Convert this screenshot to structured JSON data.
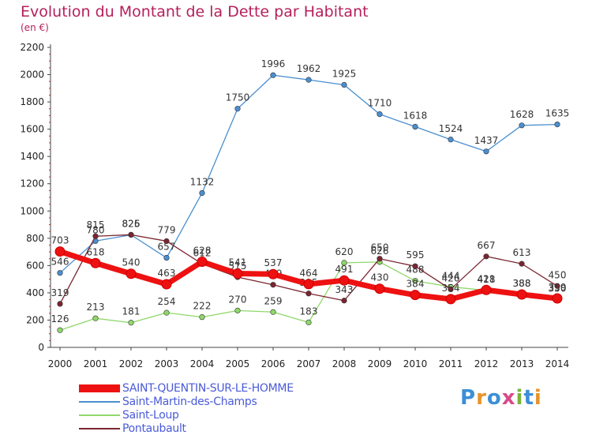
{
  "title": "Evolution du Montant de la Dette par Habitant",
  "unit_label": "(en €)",
  "logo": {
    "text": "Proxiti",
    "colors": [
      "#3c8fd6",
      "#e8932a",
      "#3c8fd6",
      "#d94a8a",
      "#7ab33b",
      "#3c8fd6",
      "#e8932a"
    ]
  },
  "chart_data": {
    "type": "line",
    "title": "Evolution du Montant de la Dette par Habitant",
    "ylabel": "(en €)",
    "xlabel": "",
    "x": [
      "2000",
      "2001",
      "2002",
      "2003",
      "2004",
      "2005",
      "2006",
      "2007",
      "2008",
      "2009",
      "2010",
      "2011",
      "2012",
      "2013",
      "2014"
    ],
    "ylim": [
      0,
      2200
    ],
    "yticks": [
      0,
      200,
      400,
      600,
      800,
      1000,
      1200,
      1400,
      1600,
      1800,
      2000,
      2200
    ],
    "grid": false,
    "legend_position": "bottom-left",
    "series": [
      {
        "name": "Saint-Martin-des-Champs",
        "color": "#4a8fd0",
        "values": [
          546,
          780,
          825,
          657,
          1132,
          1750,
          1996,
          1962,
          1925,
          1710,
          1618,
          1524,
          1437,
          1628,
          1635
        ]
      },
      {
        "name": "Saint-Loup",
        "color": "#8fd86a",
        "values": [
          126,
          213,
          181,
          254,
          222,
          270,
          259,
          183,
          620,
          626,
          488,
          444,
          418,
          388,
          350
        ]
      },
      {
        "name": "Pontaubault",
        "color": "#7a2530",
        "values": [
          319,
          815,
          826,
          779,
          612,
          515,
          459,
          395,
          343,
          650,
          595,
          426,
          667,
          613,
          450
        ]
      },
      {
        "name": "SAINT-QUENTIN-SUR-LE-HOMME",
        "color": "#ee1111",
        "values": [
          703,
          618,
          540,
          463,
          628,
          541,
          537,
          464,
          491,
          430,
          384,
          354,
          421,
          388,
          359
        ]
      }
    ],
    "legend_order": [
      "SAINT-QUENTIN-SUR-LE-HOMME",
      "Saint-Martin-des-Champs",
      "Saint-Loup",
      "Pontaubault"
    ]
  }
}
